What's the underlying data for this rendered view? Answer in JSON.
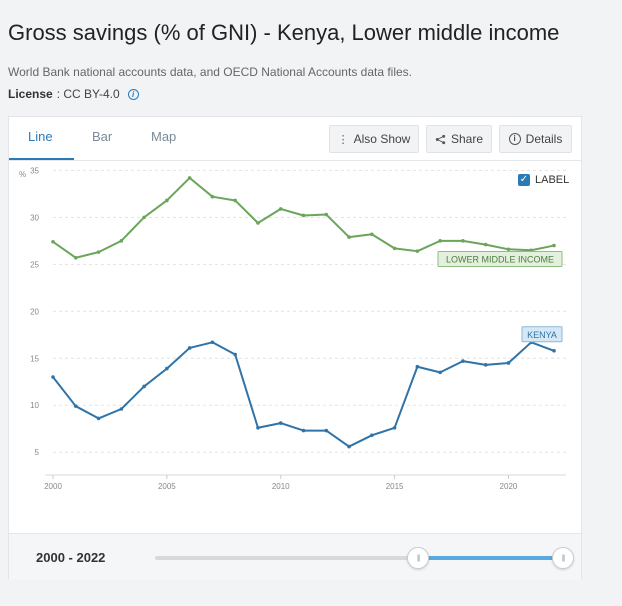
{
  "header": {
    "title": "Gross savings (% of GNI) - Kenya, Lower middle income",
    "source": "World Bank national accounts data, and OECD National Accounts data files.",
    "license_label": "License",
    "license_value": ": CC BY-4.0"
  },
  "tabs": [
    {
      "label": "Line",
      "active": true
    },
    {
      "label": "Bar",
      "active": false
    },
    {
      "label": "Map",
      "active": false
    }
  ],
  "toolbar": {
    "also_show_label": "Also Show",
    "share_label": "Share",
    "details_label": "Details"
  },
  "label_toggle": {
    "label": "LABEL",
    "checked": true
  },
  "footer": {
    "range_start": "2000",
    "range_separator": " - ",
    "range_end": "2022",
    "slider_min": 1960,
    "slider_max": 2022,
    "selected_start": 2000,
    "selected_end": 2022
  },
  "chart_data": {
    "type": "line",
    "title": "",
    "xlabel": "",
    "ylabel": "%",
    "xlim": [
      2000,
      2022
    ],
    "ylim": [
      3,
      36
    ],
    "x_ticks": [
      2000,
      2005,
      2010,
      2015,
      2020
    ],
    "y_ticks": [
      5,
      10,
      15,
      20,
      25,
      30,
      35
    ],
    "grid": true,
    "x": [
      2000,
      2001,
      2002,
      2003,
      2004,
      2005,
      2006,
      2007,
      2008,
      2009,
      2010,
      2011,
      2012,
      2013,
      2014,
      2015,
      2016,
      2017,
      2018,
      2019,
      2020,
      2021,
      2022
    ],
    "series": [
      {
        "name": "LOWER MIDDLE INCOME",
        "color": "#6aa55a",
        "label_fill": "#e3f0dd",
        "label_border": "#8fbf80",
        "label_text_color": "#4d7d40",
        "values": [
          27.4,
          25.7,
          26.3,
          27.5,
          30.0,
          31.8,
          34.2,
          32.2,
          31.8,
          29.4,
          30.9,
          30.2,
          30.3,
          27.9,
          28.2,
          26.7,
          26.4,
          27.5,
          27.5,
          27.1,
          26.6,
          26.5,
          27.0
        ]
      },
      {
        "name": "KENYA",
        "color": "#2f73a8",
        "label_fill": "#d6e8f5",
        "label_border": "#8ab8dc",
        "label_text_color": "#2f73a8",
        "values": [
          13.0,
          9.9,
          8.6,
          9.6,
          12.0,
          13.9,
          16.1,
          16.7,
          15.4,
          7.6,
          8.1,
          7.3,
          7.3,
          5.6,
          6.8,
          7.6,
          14.1,
          13.5,
          14.7,
          14.3,
          14.5,
          16.7,
          15.8
        ]
      }
    ]
  }
}
